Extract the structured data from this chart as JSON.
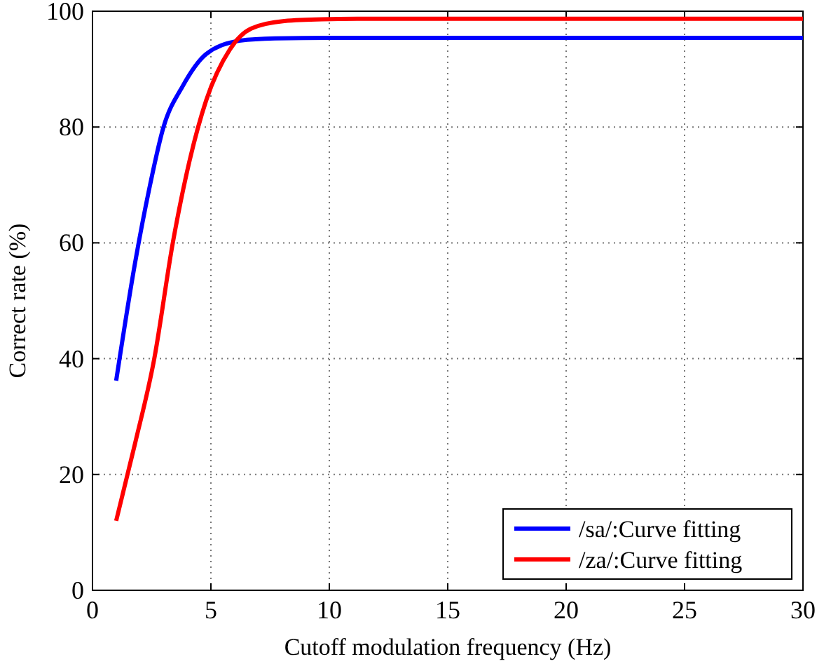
{
  "chart_data": {
    "type": "line",
    "xlabel": "Cutoff modulation frequency (Hz)",
    "ylabel": "Correct rate (%)",
    "xlim": [
      0,
      30
    ],
    "xticks": [
      0,
      5,
      10,
      15,
      20,
      25,
      30
    ],
    "ylim": [
      0,
      100
    ],
    "yticks": [
      0,
      20,
      40,
      60,
      80,
      100
    ],
    "grid": true,
    "legend": "bottom right",
    "line_style": "solid",
    "marker": "none",
    "series": [
      {
        "name": "/sa/:Curve fitting",
        "color": "#0000ff",
        "x": [
          1,
          1.8,
          2.4,
          3,
          3.8,
          4.8,
          6.2,
          7.7,
          10,
          15,
          20,
          25,
          30
        ],
        "values": [
          36.2,
          56.6,
          69.4,
          80,
          87,
          92.6,
          94.9,
          95.3,
          95.4,
          95.4,
          95.4,
          95.4,
          95.4
        ]
      },
      {
        "name": "/za/:Curve fitting",
        "color": "#ff0000",
        "x": [
          1,
          1.8,
          2.6,
          3.4,
          4.1,
          4.8,
          5.8,
          6.7,
          8.1,
          9.7,
          12,
          15,
          20,
          25,
          30
        ],
        "values": [
          12,
          25.4,
          39.8,
          60.2,
          74.2,
          84.6,
          93.4,
          97,
          98.3,
          98.6,
          98.7,
          98.7,
          98.7,
          98.7,
          98.7
        ]
      }
    ]
  }
}
